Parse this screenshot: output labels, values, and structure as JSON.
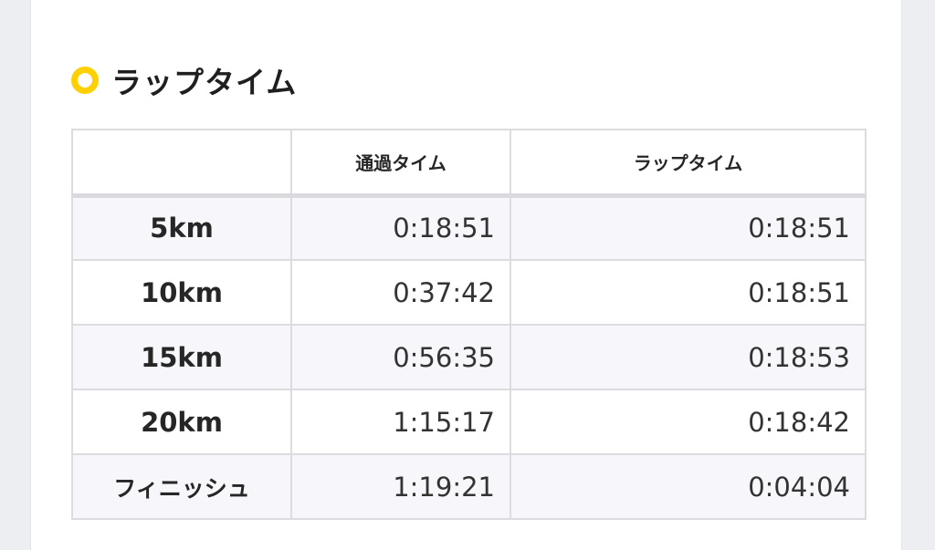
{
  "section": {
    "title": "ラップタイム"
  },
  "table": {
    "headers": [
      "",
      "通過タイム",
      "ラップタイム"
    ],
    "rows": [
      {
        "label": "5km",
        "split": "0:18:51",
        "lap": "0:18:51"
      },
      {
        "label": "10km",
        "split": "0:37:42",
        "lap": "0:18:51"
      },
      {
        "label": "15km",
        "split": "0:56:35",
        "lap": "0:18:53"
      },
      {
        "label": "20km",
        "split": "1:15:17",
        "lap": "0:18:42"
      },
      {
        "label": "フィニッシュ",
        "split": "1:19:21",
        "lap": "0:04:04"
      }
    ]
  },
  "colors": {
    "accent": "#ffd000",
    "row_stripe": "#f7f6fa",
    "border": "#dcdce0",
    "background": "#eceef2"
  }
}
